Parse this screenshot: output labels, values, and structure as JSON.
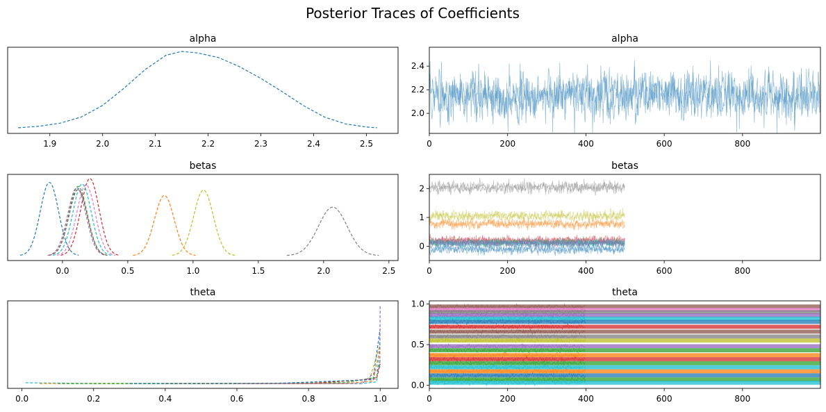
{
  "figure": {
    "title": "Posterior Traces of Coefficients"
  },
  "chart_data": [
    {
      "id": "alpha-kde",
      "type": "line",
      "title": "alpha",
      "xlabel": "",
      "ylabel": "",
      "xlim": [
        1.82,
        2.56
      ],
      "xticks": [
        1.9,
        2.0,
        2.1,
        2.2,
        2.3,
        2.4,
        2.5
      ],
      "yticks_visible": false,
      "series": [
        {
          "color": "#1f77b4",
          "dash": "dashed",
          "x": [
            1.84,
            1.88,
            1.92,
            1.96,
            2.0,
            2.04,
            2.08,
            2.12,
            2.15,
            2.18,
            2.22,
            2.26,
            2.3,
            2.34,
            2.38,
            2.42,
            2.46,
            2.5,
            2.52
          ],
          "y": [
            0.01,
            0.03,
            0.07,
            0.15,
            0.3,
            0.52,
            0.76,
            0.95,
            1.0,
            0.98,
            0.92,
            0.8,
            0.65,
            0.48,
            0.3,
            0.15,
            0.06,
            0.02,
            0.01
          ]
        }
      ]
    },
    {
      "id": "alpha-trace",
      "type": "line",
      "title": "alpha",
      "xlim": [
        0,
        999
      ],
      "ylim": [
        1.83,
        2.56
      ],
      "xticks": [
        0,
        200,
        400,
        600,
        800
      ],
      "yticks": [
        2.0,
        2.2,
        2.4
      ],
      "trace": {
        "mean": 2.15,
        "sd": 0.1,
        "n": 1000,
        "chains": 2,
        "color": "#1f77b4",
        "opacity": 0.45
      }
    },
    {
      "id": "betas-kde",
      "type": "line",
      "title": "betas",
      "xlim": [
        -0.42,
        2.57
      ],
      "xticks": [
        0.0,
        0.5,
        1.0,
        1.5,
        2.0,
        2.5
      ],
      "yticks_visible": false,
      "series": [
        {
          "color": "#1f77b4",
          "mu": -0.1,
          "sd": 0.07,
          "peak": 0.95
        },
        {
          "color": "#d62728",
          "mu": 0.21,
          "sd": 0.07,
          "peak": 1.0
        },
        {
          "color": "#e377c2",
          "mu": 0.18,
          "sd": 0.07,
          "peak": 0.92
        },
        {
          "color": "#17becf",
          "mu": 0.15,
          "sd": 0.07,
          "peak": 0.93
        },
        {
          "color": "#2ca02c",
          "mu": 0.12,
          "sd": 0.07,
          "peak": 0.9
        },
        {
          "color": "#9467bd",
          "mu": 0.11,
          "sd": 0.07,
          "peak": 0.88
        },
        {
          "color": "#8c564b",
          "mu": 0.12,
          "sd": 0.07,
          "peak": 0.86
        },
        {
          "color": "#ff7f0e",
          "mu": 0.78,
          "sd": 0.075,
          "peak": 0.78
        },
        {
          "color": "#bcbd22",
          "mu": 1.08,
          "sd": 0.075,
          "peak": 0.85
        },
        {
          "color": "#7f7f7f",
          "mu": 2.07,
          "sd": 0.11,
          "peak": 0.63
        }
      ]
    },
    {
      "id": "betas-trace",
      "type": "line",
      "title": "betas",
      "xlim": [
        0,
        999
      ],
      "ylim": [
        -0.5,
        2.5
      ],
      "xticks": [
        0,
        200,
        400,
        600,
        800
      ],
      "yticks": [
        0,
        1,
        2
      ],
      "traces": [
        {
          "mean": 2.05,
          "sd": 0.1,
          "color": "#7f7f7f"
        },
        {
          "mean": 1.05,
          "sd": 0.08,
          "color": "#bcbd22"
        },
        {
          "mean": 0.78,
          "sd": 0.08,
          "color": "#ff7f0e"
        },
        {
          "mean": 0.2,
          "sd": 0.07,
          "color": "#d62728"
        },
        {
          "mean": 0.15,
          "sd": 0.07,
          "color": "#e377c2"
        },
        {
          "mean": 0.12,
          "sd": 0.07,
          "color": "#2ca02c"
        },
        {
          "mean": 0.1,
          "sd": 0.07,
          "color": "#17becf"
        },
        {
          "mean": 0.11,
          "sd": 0.07,
          "color": "#9467bd"
        },
        {
          "mean": -0.1,
          "sd": 0.08,
          "color": "#1f77b4"
        }
      ]
    },
    {
      "id": "theta-kde",
      "type": "line",
      "title": "theta",
      "xlim": [
        -0.04,
        1.05
      ],
      "xticks": [
        0.0,
        0.2,
        0.4,
        0.6,
        0.8,
        1.0
      ],
      "yticks_visible": false,
      "series": [
        {
          "color": "#17becf",
          "x": [
            0.01,
            0.2,
            0.4,
            0.6,
            0.8,
            0.95,
            0.99,
            1.0
          ],
          "y": [
            0.01,
            0.0,
            0.0,
            0.0,
            0.0,
            0.0,
            0.02,
            0.6
          ]
        },
        {
          "color": "#ff7f0e",
          "x": [
            0.05,
            0.3,
            0.6,
            0.9,
            0.98,
            1.0
          ],
          "y": [
            0.0,
            0.0,
            0.0,
            0.0,
            0.03,
            0.45
          ]
        },
        {
          "color": "#bcbd22",
          "x": [
            0.2,
            0.5,
            0.8,
            0.97,
            1.0
          ],
          "y": [
            0.0,
            0.0,
            0.0,
            0.05,
            0.5
          ]
        },
        {
          "color": "#2ca02c",
          "x": [
            0.1,
            0.5,
            0.9,
            0.99,
            1.0
          ],
          "y": [
            0.0,
            0.0,
            0.01,
            0.08,
            0.3
          ]
        },
        {
          "color": "#d62728",
          "x": [
            0.4,
            0.8,
            0.99,
            1.0
          ],
          "y": [
            0.0,
            0.0,
            0.06,
            0.25
          ]
        },
        {
          "color": "#1f77b4",
          "x": [
            0.3,
            0.7,
            0.98,
            1.0
          ],
          "y": [
            0.0,
            0.0,
            0.05,
            0.7
          ]
        },
        {
          "color": "#9467bd",
          "x": [
            0.6,
            0.95,
            0.999,
            1.0
          ],
          "y": [
            0.0,
            0.0,
            0.2,
            1.0
          ]
        }
      ]
    },
    {
      "id": "theta-trace",
      "type": "line",
      "title": "theta",
      "xlim": [
        0,
        999
      ],
      "ylim": [
        -0.04,
        1.04
      ],
      "xticks": [
        0,
        200,
        400,
        600,
        800
      ],
      "yticks": [
        0.0,
        0.5,
        1.0
      ],
      "bands": [
        {
          "mean": 0.97,
          "color": "#8c564b"
        },
        {
          "mean": 0.93,
          "color": "#e377c2"
        },
        {
          "mean": 0.9,
          "color": "#7f7f7f"
        },
        {
          "mean": 0.86,
          "color": "#9467bd"
        },
        {
          "mean": 0.82,
          "color": "#17becf"
        },
        {
          "mean": 0.78,
          "color": "#1f77b4"
        },
        {
          "mean": 0.72,
          "color": "#d62728"
        },
        {
          "mean": 0.66,
          "color": "#8c564b"
        },
        {
          "mean": 0.6,
          "color": "#7f7f7f"
        },
        {
          "mean": 0.55,
          "color": "#bcbd22"
        },
        {
          "mean": 0.48,
          "color": "#9467bd"
        },
        {
          "mean": 0.43,
          "color": "#2ca02c"
        },
        {
          "mean": 0.37,
          "color": "#ff7f0e"
        },
        {
          "mean": 0.32,
          "color": "#d62728"
        },
        {
          "mean": 0.27,
          "color": "#2ca02c"
        },
        {
          "mean": 0.22,
          "color": "#17becf"
        },
        {
          "mean": 0.17,
          "color": "#ff7f0e"
        },
        {
          "mean": 0.12,
          "color": "#1f77b4"
        },
        {
          "mean": 0.07,
          "color": "#2ca02c"
        },
        {
          "mean": 0.03,
          "color": "#17becf"
        }
      ]
    }
  ]
}
